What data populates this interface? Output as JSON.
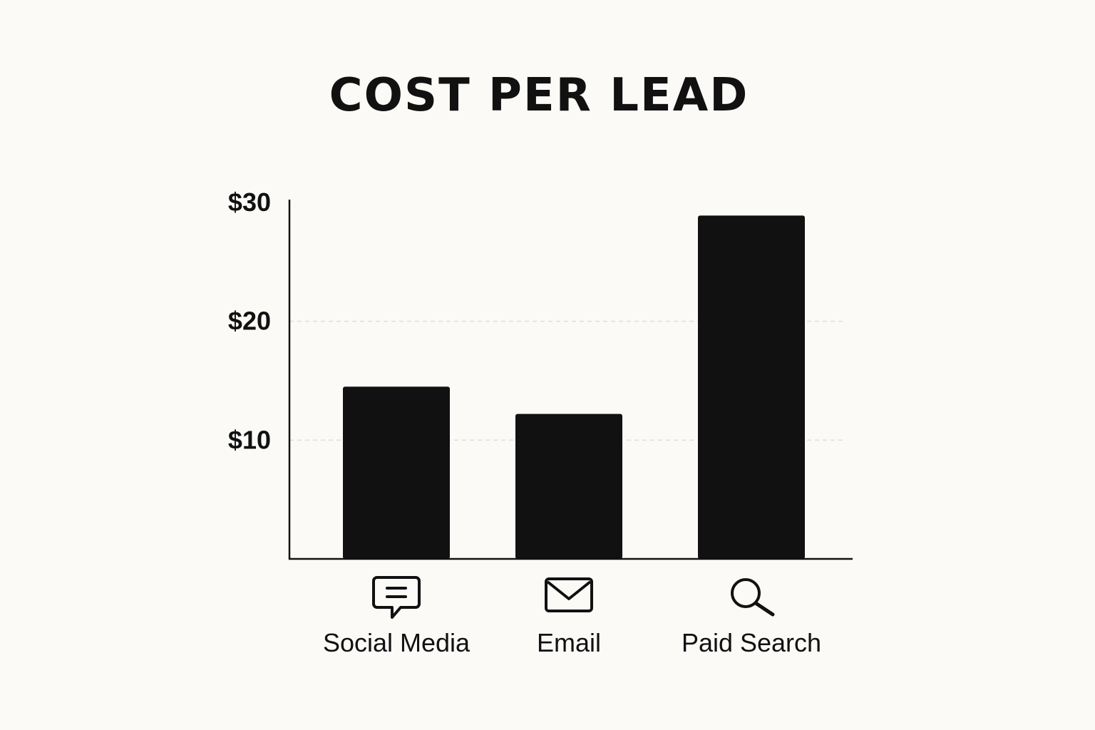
{
  "chart_data": {
    "type": "bar",
    "title": "COST PER LEAD",
    "xlabel": "",
    "ylabel": "",
    "categories": [
      "Social Media",
      "Email",
      "Paid Search"
    ],
    "category_icons": [
      "chat-bubble-icon",
      "envelope-icon",
      "magnifier-icon"
    ],
    "values": [
      14.5,
      12.2,
      28.9
    ],
    "ylim": [
      0,
      30
    ],
    "yticks": [
      10,
      20,
      30
    ],
    "ytick_labels": [
      "$10",
      "$20",
      "$30"
    ],
    "grid": "dashed horizontal at $10 and $20",
    "legend": "none",
    "colors": {
      "bar": "#111111",
      "axis": "#111111",
      "grid": "#d9d6cf",
      "background": "#fbfaf7"
    }
  }
}
